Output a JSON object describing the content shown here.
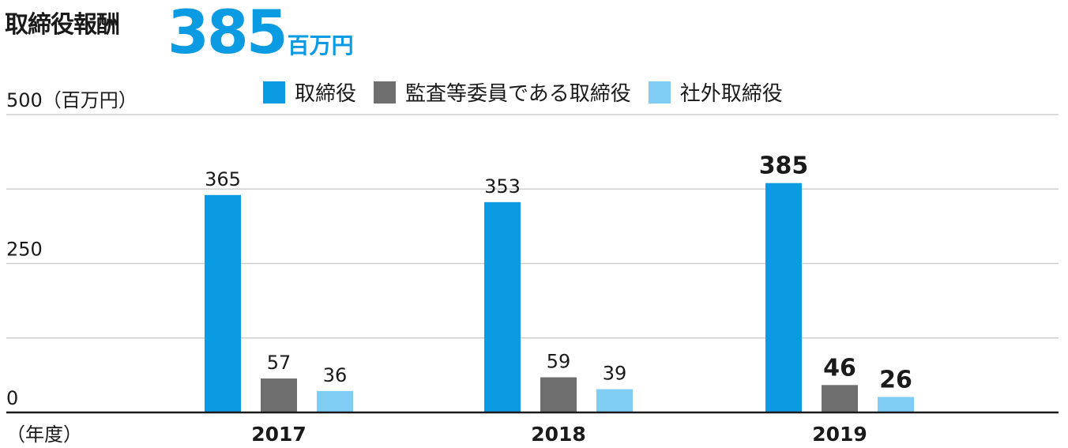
{
  "title": "取締役報酬",
  "headline": {
    "value": "385",
    "unit": "百万円"
  },
  "colors": {
    "directors": "#0a9be2",
    "audit": "#6f6f6f",
    "outside": "#7fcdf2",
    "grid": "#cfcfcf",
    "axis": "#1a1a1a"
  },
  "chart_data": {
    "type": "bar",
    "title": "取締役報酬",
    "ylabel": "500（百万円）",
    "xlabel": "（年度）",
    "ylim": [
      0,
      500
    ],
    "yticks": [
      "0",
      "250",
      "500（百万円）"
    ],
    "categories": [
      "2017",
      "2018",
      "2019"
    ],
    "series": [
      {
        "name": "取締役",
        "values": [
          365,
          353,
          385
        ],
        "color": "#0a9be2"
      },
      {
        "name": "監査等委員である取締役",
        "values": [
          57,
          59,
          46
        ],
        "color": "#6f6f6f"
      },
      {
        "name": "社外取締役",
        "values": [
          36,
          39,
          26
        ],
        "color": "#7fcdf2"
      }
    ],
    "grid": true,
    "legend_position": "top",
    "highlighted_category": "2019"
  }
}
